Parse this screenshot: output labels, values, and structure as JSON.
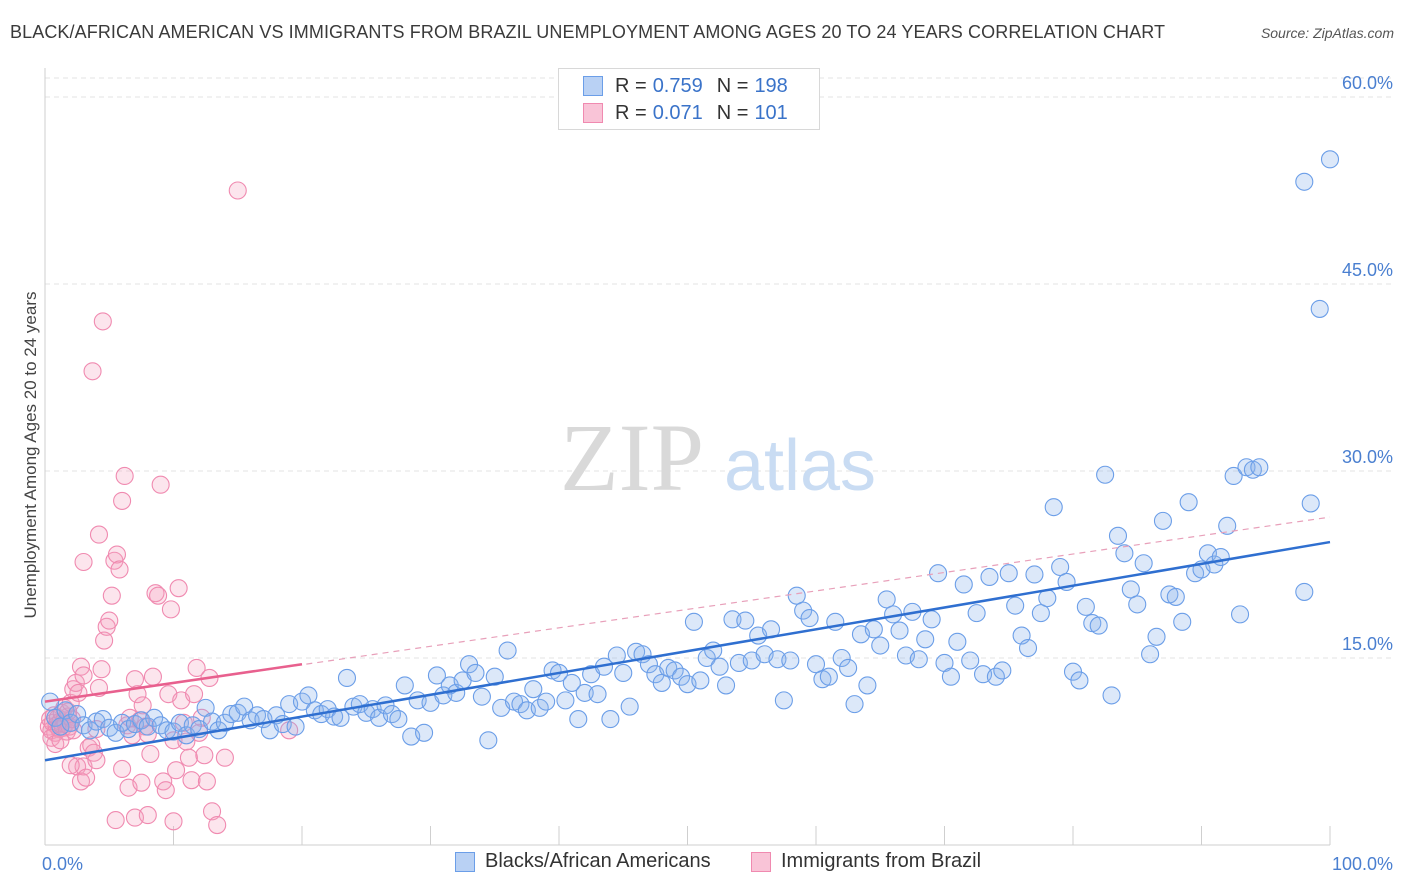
{
  "title": "BLACK/AFRICAN AMERICAN VS IMMIGRANTS FROM BRAZIL UNEMPLOYMENT AMONG AGES 20 TO 24 YEARS CORRELATION CHART",
  "source": "Source: ZipAtlas.com",
  "watermark": {
    "zip": "ZIP",
    "atlas": "atlas"
  },
  "legend_top": {
    "rows": [
      {
        "r_label": "R =",
        "r_value": "0.759",
        "n_label": "N =",
        "n_value": "198"
      },
      {
        "r_label": "R =",
        "r_value": "0.071",
        "n_label": "N =",
        "n_value": "101"
      }
    ]
  },
  "legend_bottom": [
    "Blacks/African Americans",
    "Immigrants from Brazil"
  ],
  "chart_data": {
    "type": "scatter",
    "title": "BLACK/AFRICAN AMERICAN VS IMMIGRANTS FROM BRAZIL UNEMPLOYMENT AMONG AGES 20 TO 24 YEARS CORRELATION CHART",
    "xlabel": "",
    "ylabel": "Unemployment Among Ages 20 to 24 years",
    "xlim": [
      0,
      100
    ],
    "ylim": [
      0,
      62
    ],
    "x_tick_labels": [
      "0.0%",
      "100.0%"
    ],
    "y_ticks": [
      15,
      30,
      45,
      60
    ],
    "y_tick_labels": [
      "15.0%",
      "30.0%",
      "45.0%",
      "60.0%"
    ],
    "grid": true,
    "legend_position": "top-center",
    "colors": {
      "blue": "#6b9ee8",
      "blue_line": "#2f6fd0",
      "pink": "#f08ab0",
      "pink_line": "#e8608e"
    },
    "series": [
      {
        "name": "Blacks/African Americans",
        "color": "#6b9ee8",
        "r": 0.759,
        "n": 198,
        "trend": {
          "x": [
            0,
            100
          ],
          "y": [
            6.8,
            24.3
          ],
          "style": "solid"
        },
        "points": [
          [
            0.4,
            11.5
          ],
          [
            0.8,
            10.2
          ],
          [
            1.2,
            9.5
          ],
          [
            1.6,
            10.8
          ],
          [
            2.0,
            9.8
          ],
          [
            2.5,
            10.5
          ],
          [
            3.0,
            9.6
          ],
          [
            3.5,
            9.2
          ],
          [
            4.0,
            9.9
          ],
          [
            4.5,
            10.1
          ],
          [
            5.0,
            9.4
          ],
          [
            5.5,
            9.0
          ],
          [
            6.0,
            9.8
          ],
          [
            6.5,
            9.3
          ],
          [
            7.0,
            9.7
          ],
          [
            7.5,
            10.0
          ],
          [
            8.0,
            9.5
          ],
          [
            8.5,
            10.2
          ],
          [
            9.0,
            9.6
          ],
          [
            9.5,
            9.2
          ],
          [
            10.0,
            9.1
          ],
          [
            10.5,
            9.8
          ],
          [
            11.0,
            8.8
          ],
          [
            11.5,
            9.6
          ],
          [
            12.0,
            9.3
          ],
          [
            12.5,
            11.0
          ],
          [
            13.0,
            9.9
          ],
          [
            13.5,
            9.2
          ],
          [
            14.0,
            9.8
          ],
          [
            14.5,
            10.5
          ],
          [
            15.0,
            10.6
          ],
          [
            15.5,
            11.1
          ],
          [
            16.0,
            10.0
          ],
          [
            16.5,
            10.4
          ],
          [
            17.0,
            10.1
          ],
          [
            17.5,
            9.2
          ],
          [
            18.0,
            10.4
          ],
          [
            18.5,
            9.7
          ],
          [
            19.0,
            11.3
          ],
          [
            19.5,
            9.5
          ],
          [
            20.0,
            11.5
          ],
          [
            20.5,
            12.0
          ],
          [
            21.0,
            10.8
          ],
          [
            21.5,
            10.5
          ],
          [
            22.0,
            10.9
          ],
          [
            22.5,
            10.3
          ],
          [
            23.0,
            10.2
          ],
          [
            23.5,
            13.4
          ],
          [
            24.0,
            11.1
          ],
          [
            24.5,
            11.3
          ],
          [
            25.0,
            10.6
          ],
          [
            25.5,
            10.9
          ],
          [
            26.0,
            10.2
          ],
          [
            26.5,
            11.2
          ],
          [
            27.0,
            10.5
          ],
          [
            27.5,
            10.1
          ],
          [
            28.0,
            12.8
          ],
          [
            28.5,
            8.7
          ],
          [
            29.0,
            11.6
          ],
          [
            29.5,
            9.0
          ],
          [
            30.0,
            11.4
          ],
          [
            30.5,
            13.6
          ],
          [
            31.0,
            12.0
          ],
          [
            31.5,
            12.8
          ],
          [
            32.0,
            12.2
          ],
          [
            32.5,
            13.2
          ],
          [
            33.0,
            14.5
          ],
          [
            33.5,
            13.8
          ],
          [
            34.0,
            11.9
          ],
          [
            34.5,
            8.4
          ],
          [
            35.0,
            13.5
          ],
          [
            35.5,
            11.0
          ],
          [
            36.0,
            15.6
          ],
          [
            36.5,
            11.5
          ],
          [
            37.0,
            11.3
          ],
          [
            37.5,
            10.8
          ],
          [
            38.0,
            12.5
          ],
          [
            38.5,
            11.0
          ],
          [
            39.0,
            11.5
          ],
          [
            39.5,
            14.0
          ],
          [
            40.0,
            13.8
          ],
          [
            40.5,
            11.6
          ],
          [
            41.0,
            13.0
          ],
          [
            41.5,
            10.1
          ],
          [
            42.0,
            12.2
          ],
          [
            42.5,
            13.7
          ],
          [
            43.0,
            12.1
          ],
          [
            43.5,
            14.3
          ],
          [
            44.0,
            10.1
          ],
          [
            44.5,
            15.2
          ],
          [
            45.0,
            13.8
          ],
          [
            45.5,
            11.1
          ],
          [
            46.0,
            15.5
          ],
          [
            46.5,
            15.3
          ],
          [
            47.0,
            14.5
          ],
          [
            47.5,
            13.7
          ],
          [
            48.0,
            13.0
          ],
          [
            48.5,
            14.2
          ],
          [
            49.0,
            14.0
          ],
          [
            49.5,
            13.5
          ],
          [
            50.0,
            12.9
          ],
          [
            50.5,
            17.9
          ],
          [
            51.0,
            13.2
          ],
          [
            51.5,
            15.0
          ],
          [
            52.0,
            15.6
          ],
          [
            52.5,
            14.3
          ],
          [
            53.0,
            12.8
          ],
          [
            53.5,
            18.1
          ],
          [
            54.0,
            14.6
          ],
          [
            54.5,
            18.0
          ],
          [
            55.0,
            14.8
          ],
          [
            55.5,
            16.8
          ],
          [
            56.0,
            15.3
          ],
          [
            56.5,
            17.3
          ],
          [
            57.0,
            14.9
          ],
          [
            57.5,
            11.6
          ],
          [
            58.0,
            14.8
          ],
          [
            58.5,
            20.0
          ],
          [
            59.0,
            18.8
          ],
          [
            59.5,
            18.2
          ],
          [
            60.0,
            14.5
          ],
          [
            60.5,
            13.3
          ],
          [
            61.0,
            13.5
          ],
          [
            61.5,
            17.9
          ],
          [
            62.0,
            15.0
          ],
          [
            62.5,
            14.2
          ],
          [
            63.0,
            11.3
          ],
          [
            63.5,
            16.9
          ],
          [
            64.0,
            12.8
          ],
          [
            64.5,
            17.3
          ],
          [
            65.0,
            16.0
          ],
          [
            65.5,
            19.7
          ],
          [
            66.0,
            18.5
          ],
          [
            66.5,
            17.2
          ],
          [
            67.0,
            15.2
          ],
          [
            67.5,
            18.7
          ],
          [
            68.0,
            14.9
          ],
          [
            68.5,
            16.5
          ],
          [
            69.0,
            18.1
          ],
          [
            69.5,
            21.8
          ],
          [
            70.0,
            14.6
          ],
          [
            70.5,
            13.5
          ],
          [
            71.0,
            16.3
          ],
          [
            71.5,
            20.9
          ],
          [
            72.0,
            14.8
          ],
          [
            72.5,
            18.6
          ],
          [
            73.0,
            13.7
          ],
          [
            73.5,
            21.5
          ],
          [
            74.0,
            13.5
          ],
          [
            74.5,
            14.0
          ],
          [
            75.0,
            21.8
          ],
          [
            75.5,
            19.2
          ],
          [
            76.0,
            16.8
          ],
          [
            76.5,
            15.8
          ],
          [
            77.0,
            21.7
          ],
          [
            77.5,
            18.6
          ],
          [
            78.0,
            19.8
          ],
          [
            78.5,
            27.1
          ],
          [
            79.0,
            22.3
          ],
          [
            79.5,
            21.1
          ],
          [
            80.0,
            13.9
          ],
          [
            80.5,
            13.2
          ],
          [
            81.0,
            19.1
          ],
          [
            81.5,
            17.8
          ],
          [
            82.0,
            17.6
          ],
          [
            82.5,
            29.7
          ],
          [
            83.0,
            12.0
          ],
          [
            83.5,
            24.8
          ],
          [
            84.0,
            23.4
          ],
          [
            84.5,
            20.5
          ],
          [
            85.0,
            19.3
          ],
          [
            85.5,
            22.6
          ],
          [
            86.0,
            15.3
          ],
          [
            86.5,
            16.7
          ],
          [
            87.0,
            26.0
          ],
          [
            87.5,
            20.1
          ],
          [
            88.0,
            19.9
          ],
          [
            88.5,
            17.9
          ],
          [
            89.0,
            27.5
          ],
          [
            89.5,
            21.8
          ],
          [
            90.0,
            22.1
          ],
          [
            90.5,
            23.4
          ],
          [
            91.0,
            22.5
          ],
          [
            91.5,
            23.1
          ],
          [
            92.0,
            25.6
          ],
          [
            92.5,
            29.6
          ],
          [
            93.0,
            18.5
          ],
          [
            93.5,
            30.3
          ],
          [
            94.0,
            30.1
          ],
          [
            94.5,
            30.3
          ],
          [
            98.0,
            20.3
          ],
          [
            98.5,
            27.4
          ],
          [
            98.0,
            53.2
          ],
          [
            99.2,
            43.0
          ],
          [
            100.0,
            55.0
          ]
        ]
      },
      {
        "name": "Immigrants from Brazil",
        "color": "#f08ab0",
        "r": 0.071,
        "n": 101,
        "trend": {
          "x": [
            0,
            20
          ],
          "y": [
            11.5,
            14.5
          ],
          "style": "solid",
          "extended": {
            "x": [
              0,
              100
            ],
            "y": [
              11.5,
              26.3
            ],
            "style": "dashed"
          }
        },
        "points": [
          [
            0.3,
            9.5
          ],
          [
            0.4,
            10.1
          ],
          [
            0.5,
            9.2
          ],
          [
            0.6,
            9.8
          ],
          [
            0.7,
            10.4
          ],
          [
            0.8,
            9.0
          ],
          [
            0.9,
            9.6
          ],
          [
            1.0,
            10.2
          ],
          [
            1.1,
            9.3
          ],
          [
            1.2,
            9.9
          ],
          [
            1.3,
            10.6
          ],
          [
            1.4,
            9.4
          ],
          [
            1.5,
            10.0
          ],
          [
            1.6,
            9.7
          ],
          [
            1.7,
            9.1
          ],
          [
            1.8,
            10.3
          ],
          [
            1.9,
            9.5
          ],
          [
            2.0,
            9.8
          ],
          [
            2.1,
            10.1
          ],
          [
            2.2,
            9.2
          ],
          [
            0.5,
            8.6
          ],
          [
            0.8,
            8.1
          ],
          [
            1.2,
            8.4
          ],
          [
            1.5,
            11.0
          ],
          [
            1.8,
            10.7
          ],
          [
            2.0,
            11.4
          ],
          [
            2.2,
            12.5
          ],
          [
            2.4,
            13.0
          ],
          [
            2.6,
            12.2
          ],
          [
            2.8,
            14.3
          ],
          [
            3.0,
            13.6
          ],
          [
            2.5,
            6.3
          ],
          [
            2.8,
            5.1
          ],
          [
            3.0,
            6.3
          ],
          [
            3.2,
            5.4
          ],
          [
            3.4,
            7.8
          ],
          [
            3.6,
            8.0
          ],
          [
            3.8,
            7.4
          ],
          [
            4.0,
            9.3
          ],
          [
            4.2,
            12.6
          ],
          [
            4.4,
            14.1
          ],
          [
            4.6,
            16.4
          ],
          [
            4.8,
            17.5
          ],
          [
            5.0,
            18.0
          ],
          [
            5.2,
            20.0
          ],
          [
            5.4,
            22.8
          ],
          [
            5.6,
            23.3
          ],
          [
            5.8,
            22.1
          ],
          [
            6.0,
            27.6
          ],
          [
            6.2,
            29.6
          ],
          [
            6.4,
            9.6
          ],
          [
            6.6,
            10.2
          ],
          [
            6.8,
            8.8
          ],
          [
            7.0,
            13.3
          ],
          [
            7.2,
            12.1
          ],
          [
            7.4,
            10.0
          ],
          [
            7.6,
            11.2
          ],
          [
            7.8,
            9.5
          ],
          [
            8.0,
            8.9
          ],
          [
            8.2,
            7.3
          ],
          [
            8.4,
            13.5
          ],
          [
            8.6,
            20.2
          ],
          [
            8.8,
            20.0
          ],
          [
            9.0,
            28.9
          ],
          [
            9.2,
            5.1
          ],
          [
            9.4,
            4.4
          ],
          [
            9.6,
            12.1
          ],
          [
            9.8,
            18.9
          ],
          [
            10.0,
            8.4
          ],
          [
            10.2,
            6.0
          ],
          [
            10.4,
            20.6
          ],
          [
            10.6,
            11.6
          ],
          [
            10.8,
            9.8
          ],
          [
            11.0,
            8.3
          ],
          [
            11.2,
            7.0
          ],
          [
            11.4,
            5.2
          ],
          [
            11.6,
            12.1
          ],
          [
            11.8,
            14.2
          ],
          [
            12.0,
            9.0
          ],
          [
            12.2,
            10.2
          ],
          [
            12.4,
            7.2
          ],
          [
            12.6,
            5.1
          ],
          [
            12.8,
            13.4
          ],
          [
            13.0,
            2.7
          ],
          [
            13.4,
            1.6
          ],
          [
            14.0,
            7.0
          ],
          [
            15.0,
            52.5
          ],
          [
            4.5,
            42.0
          ],
          [
            3.7,
            38.0
          ],
          [
            3.0,
            22.7
          ],
          [
            6.0,
            6.1
          ],
          [
            6.5,
            4.6
          ],
          [
            7.0,
            2.2
          ],
          [
            8.0,
            2.4
          ],
          [
            10.0,
            1.9
          ],
          [
            19.0,
            9.2
          ],
          [
            4.2,
            24.9
          ],
          [
            4.0,
            6.8
          ],
          [
            5.5,
            2.0
          ],
          [
            7.5,
            5.0
          ],
          [
            2.0,
            6.4
          ]
        ]
      }
    ]
  }
}
